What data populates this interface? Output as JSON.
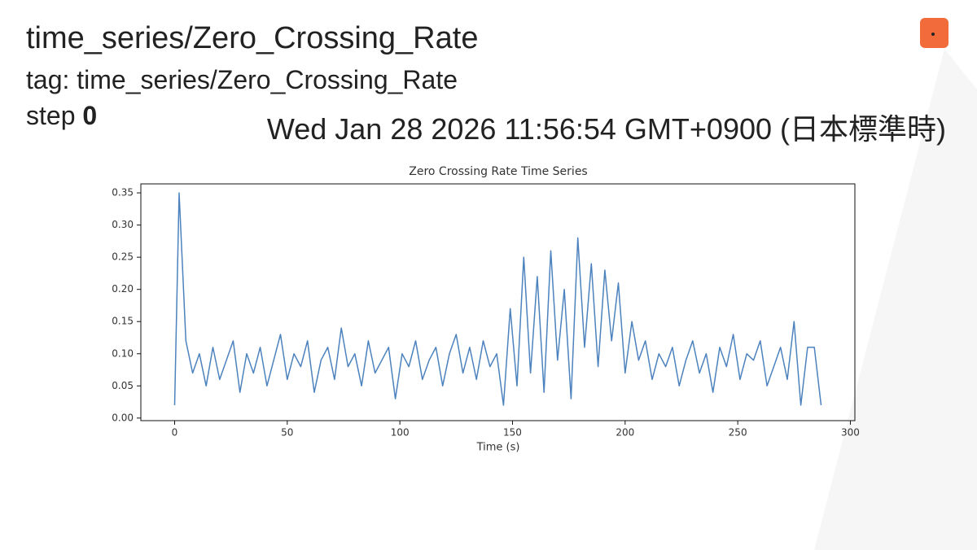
{
  "header": {
    "title": "time_series/Zero_Crossing_Rate",
    "tag": "tag: time_series/Zero_Crossing_Rate",
    "step_label": "step",
    "step": 0,
    "timestamp": "Wed Jan 28 2026 11:56:54 GMT+0900 (日本標準時)"
  },
  "chart_data": {
    "type": "line",
    "title": "Zero Crossing Rate Time Series",
    "x_label": "Time (s)",
    "x": [
      0,
      2,
      5,
      8,
      11,
      14,
      17,
      20,
      23,
      26,
      29,
      32,
      35,
      38,
      41,
      44,
      47,
      50,
      53,
      56,
      59,
      62,
      65,
      68,
      71,
      74,
      77,
      80,
      83,
      86,
      89,
      92,
      95,
      98,
      101,
      104,
      107,
      110,
      113,
      116,
      119,
      122,
      125,
      128,
      131,
      134,
      137,
      140,
      143,
      146,
      149,
      152,
      155,
      158,
      161,
      164,
      167,
      170,
      173,
      176,
      179,
      182,
      185,
      188,
      191,
      194,
      197,
      200,
      203,
      206,
      209,
      212,
      215,
      218,
      221,
      224,
      227,
      230,
      233,
      236,
      239,
      242,
      245,
      248,
      251,
      254,
      257,
      260,
      263,
      266,
      269,
      272,
      275,
      278,
      281,
      284,
      287
    ],
    "values": [
      0.02,
      0.35,
      0.12,
      0.07,
      0.1,
      0.05,
      0.11,
      0.06,
      0.09,
      0.12,
      0.04,
      0.1,
      0.07,
      0.11,
      0.05,
      0.09,
      0.13,
      0.06,
      0.1,
      0.08,
      0.12,
      0.04,
      0.09,
      0.11,
      0.06,
      0.14,
      0.08,
      0.1,
      0.05,
      0.12,
      0.07,
      0.09,
      0.11,
      0.03,
      0.1,
      0.08,
      0.12,
      0.06,
      0.09,
      0.11,
      0.05,
      0.1,
      0.13,
      0.07,
      0.11,
      0.06,
      0.12,
      0.08,
      0.1,
      0.02,
      0.17,
      0.05,
      0.25,
      0.07,
      0.22,
      0.04,
      0.26,
      0.09,
      0.2,
      0.03,
      0.28,
      0.11,
      0.24,
      0.08,
      0.23,
      0.12,
      0.21,
      0.07,
      0.15,
      0.09,
      0.12,
      0.06,
      0.1,
      0.08,
      0.11,
      0.05,
      0.09,
      0.12,
      0.07,
      0.1,
      0.04,
      0.11,
      0.08,
      0.13,
      0.06,
      0.1,
      0.09,
      0.12,
      0.05,
      0.08,
      0.11,
      0.06,
      0.15,
      0.02,
      0.11,
      0.11,
      0.02
    ],
    "color": "#4c82bd",
    "xlim": [
      -15,
      302
    ],
    "ylim": [
      -0.004,
      0.364
    ],
    "xticks": [
      0,
      50,
      100,
      150,
      200,
      250,
      300
    ],
    "yticks": [
      {
        "value": 0,
        "label": "0.00"
      },
      {
        "value": 0.05,
        "label": "0.05"
      },
      {
        "value": 0.1,
        "label": "0.10"
      },
      {
        "value": 0.15,
        "label": "0.15"
      },
      {
        "value": 0.2,
        "label": "0.20"
      },
      {
        "value": 0.25,
        "label": "0.25"
      },
      {
        "value": 0.3,
        "label": "0.30"
      },
      {
        "value": 0.35,
        "label": "0.35"
      }
    ]
  }
}
